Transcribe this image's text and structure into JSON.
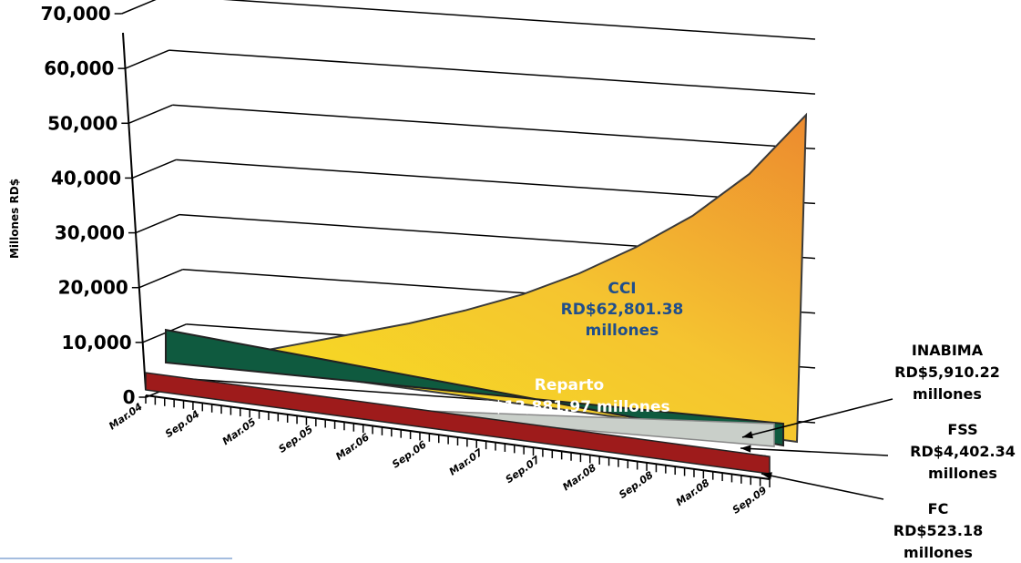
{
  "chart_data": {
    "type": "area",
    "ylabel": "Millones RD$",
    "ylim": [
      0,
      70000
    ],
    "yticks": [
      "70,000",
      "60,000",
      "50,000",
      "40,000",
      "30,000",
      "20,000",
      "10,000",
      "0"
    ],
    "ytick_values": [
      70000,
      60000,
      50000,
      40000,
      30000,
      20000,
      10000,
      0
    ],
    "categories": [
      "Mar.04",
      "Sep.04",
      "Mar.05",
      "Sep.05",
      "Mar.06",
      "Sep.06",
      "Mar.07",
      "Sep.07",
      "Mar.08",
      "Sep.08",
      "Mar.08",
      "Sep.09"
    ],
    "grid": true,
    "series": [
      {
        "name": "CCI",
        "label_lines": [
          "CCI",
          "RD$62,801.38",
          "millones"
        ],
        "color": "#f2b233",
        "values": [
          0,
          2000,
          5500,
          9000,
          12500,
          16500,
          21000,
          26500,
          33000,
          40500,
          50000,
          62801.38
        ]
      },
      {
        "name": "Reparto",
        "label_lines": [
          "Reparto",
          "RD$13,881.97 millones"
        ],
        "color": "#0f5a3f",
        "values": [
          13881.97,
          13881.97,
          13881.97,
          13881.97,
          13881.97,
          13881.97,
          13881.97,
          13881.97,
          13881.97,
          13881.97,
          13881.97,
          13881.97
        ]
      },
      {
        "name": "INABIMA",
        "label_lines": [
          "INABIMA",
          "RD$5,910.22",
          "millones"
        ],
        "color": "#c9cfc9",
        "values": [
          0,
          0,
          0,
          500,
          1000,
          1600,
          2300,
          3000,
          3700,
          4400,
          5200,
          5910.22
        ]
      },
      {
        "name": "FSS",
        "label_lines": [
          "FSS",
          "RD$4,402.34",
          "millones"
        ],
        "color": "#f0b400",
        "values": [
          0,
          0,
          0,
          400,
          800,
          1300,
          1800,
          2300,
          2900,
          3400,
          3900,
          4402.34
        ]
      },
      {
        "name": "FC",
        "label_lines": [
          "FC",
          "RD$523.18",
          "millones"
        ],
        "color": "#9e1b1b",
        "values": [
          523.18,
          523.18,
          523.18,
          523.18,
          523.18,
          523.18,
          523.18,
          523.18,
          523.18,
          523.18,
          523.18,
          523.18
        ]
      }
    ]
  }
}
